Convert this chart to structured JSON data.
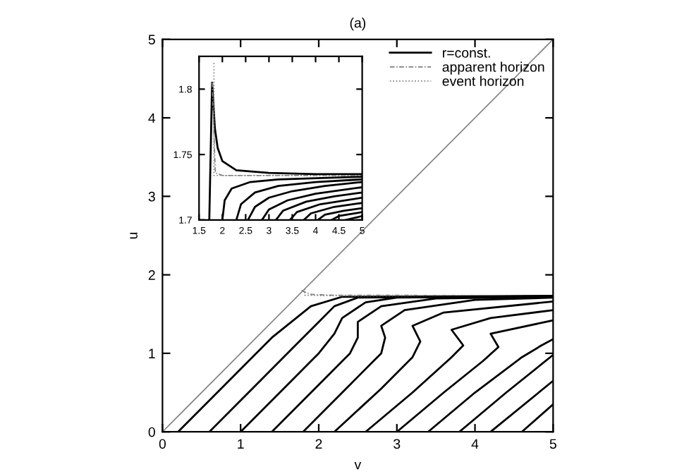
{
  "chart_data": [
    {
      "type": "line",
      "title": "(a)",
      "xlabel": "v",
      "ylabel": "u",
      "xlim": [
        0,
        5
      ],
      "ylim": [
        0,
        5
      ],
      "xticks": [
        0,
        1,
        2,
        3,
        4,
        5
      ],
      "yticks": [
        0,
        1,
        2,
        3,
        4,
        5
      ],
      "grid": false,
      "legend": "top right",
      "marker": "none",
      "series": [
        {
          "name": "r=const.",
          "color": "#000000",
          "line_style": "solid",
          "x": [
            0.2,
            0.8,
            1.4,
            1.9,
            2.3,
            5
          ],
          "values": [
            0,
            0.6,
            1.2,
            1.6,
            1.72,
            1.73
          ]
        },
        {
          "name": "apparent horizon",
          "color": "#808080",
          "line_style": "dashed",
          "x": [
            1.78,
            1.9,
            2.2,
            3,
            5
          ],
          "values": [
            1.8,
            1.75,
            1.74,
            1.74,
            1.73
          ]
        },
        {
          "name": "event horizon",
          "color": "#808080",
          "line_style": "dotted",
          "x": [
            1.82,
            1.82,
            2.5,
            5
          ],
          "values": [
            1.82,
            1.74,
            1.73,
            1.73
          ]
        },
        {
          "color": "#808080",
          "line_style": "solid",
          "x": [
            0,
            5
          ],
          "values": [
            0,
            5
          ]
        },
        {
          "color": "#000000",
          "line_style": "solid",
          "x": [
            0.6,
            1.2,
            1.7,
            2.0,
            2.2,
            2.5,
            5
          ],
          "values": [
            0,
            0.6,
            1.1,
            1.4,
            1.6,
            1.71,
            1.73
          ]
        },
        {
          "color": "#000000",
          "line_style": "solid",
          "x": [
            1.0,
            1.6,
            2.0,
            2.2,
            2.3,
            2.6,
            3,
            5
          ],
          "values": [
            0,
            0.6,
            1.0,
            1.25,
            1.45,
            1.65,
            1.71,
            1.73
          ]
        },
        {
          "color": "#000000",
          "line_style": "solid",
          "x": [
            1.4,
            2.0,
            2.4,
            2.5,
            2.5,
            2.8,
            3.5,
            5
          ],
          "values": [
            0,
            0.6,
            1.0,
            1.2,
            1.4,
            1.6,
            1.7,
            1.72
          ]
        },
        {
          "color": "#000000",
          "line_style": "solid",
          "x": [
            1.8,
            2.4,
            2.8,
            2.85,
            2.8,
            3.1,
            4,
            5
          ],
          "values": [
            0,
            0.6,
            1.0,
            1.2,
            1.35,
            1.55,
            1.68,
            1.71
          ]
        },
        {
          "color": "#000000",
          "line_style": "solid",
          "x": [
            2.2,
            2.8,
            3.2,
            3.3,
            3.2,
            3.6,
            5
          ],
          "values": [
            0,
            0.55,
            0.95,
            1.15,
            1.35,
            1.52,
            1.66
          ]
        },
        {
          "color": "#000000",
          "line_style": "solid",
          "x": [
            2.6,
            3.2,
            3.7,
            3.85,
            3.7,
            4.2,
            5
          ],
          "values": [
            0,
            0.5,
            0.95,
            1.1,
            1.3,
            1.45,
            1.55
          ]
        },
        {
          "color": "#000000",
          "line_style": "solid",
          "x": [
            3.0,
            3.6,
            4.1,
            4.3,
            4.2,
            5
          ],
          "values": [
            0,
            0.5,
            0.9,
            1.08,
            1.25,
            1.42
          ]
        },
        {
          "color": "#000000",
          "line_style": "solid",
          "x": [
            3.4,
            4.0,
            4.6,
            4.85,
            5
          ],
          "values": [
            0,
            0.5,
            0.95,
            1.1,
            1.18
          ]
        },
        {
          "color": "#000000",
          "line_style": "solid",
          "x": [
            3.8,
            4.4,
            5
          ],
          "values": [
            0,
            0.5,
            0.98
          ]
        },
        {
          "color": "#000000",
          "line_style": "solid",
          "x": [
            4.2,
            5
          ],
          "values": [
            0,
            0.65
          ]
        },
        {
          "color": "#000000",
          "line_style": "solid",
          "x": [
            4.6,
            5
          ],
          "values": [
            0,
            0.35
          ]
        }
      ]
    },
    {
      "type": "line",
      "xlim": [
        1.5,
        5
      ],
      "ylim": [
        1.7,
        1.825
      ],
      "xticks": [
        1.5,
        2,
        2.5,
        3,
        3.5,
        4,
        4.5,
        5
      ],
      "yticks": [
        1.7,
        1.75,
        1.8
      ],
      "grid": false,
      "legend": false,
      "marker": "none",
      "series": [
        {
          "color": "#000000",
          "line_style": "solid",
          "x": [
            1.72,
            1.78,
            1.84,
            1.9,
            2.0,
            2.3,
            3,
            4,
            5
          ],
          "values": [
            1.7,
            1.805,
            1.77,
            1.755,
            1.745,
            1.738,
            1.736,
            1.735,
            1.735
          ]
        },
        {
          "color": "#808080",
          "line_style": "dashed",
          "x": [
            1.78,
            1.85,
            2.0,
            5
          ],
          "values": [
            1.805,
            1.736,
            1.734,
            1.734
          ]
        },
        {
          "color": "#808080",
          "line_style": "dotted",
          "x": [
            1.82,
            1.82,
            2.5,
            5
          ],
          "values": [
            1.82,
            1.734,
            1.734,
            1.734
          ]
        },
        {
          "color": "#000000",
          "line_style": "solid",
          "x": [
            2.0,
            2.05,
            2.2,
            2.6,
            3.2,
            5
          ],
          "values": [
            1.7,
            1.715,
            1.724,
            1.729,
            1.731,
            1.733
          ]
        },
        {
          "color": "#000000",
          "line_style": "solid",
          "x": [
            2.3,
            2.4,
            2.7,
            3.2,
            4,
            5
          ],
          "values": [
            1.7,
            1.712,
            1.721,
            1.726,
            1.729,
            1.731
          ]
        },
        {
          "color": "#000000",
          "line_style": "solid",
          "x": [
            2.55,
            2.7,
            3.0,
            3.5,
            4.2,
            5
          ],
          "values": [
            1.7,
            1.71,
            1.717,
            1.722,
            1.726,
            1.729
          ]
        },
        {
          "color": "#000000",
          "line_style": "solid",
          "x": [
            2.85,
            3.0,
            3.4,
            4.0,
            5
          ],
          "values": [
            1.7,
            1.708,
            1.715,
            1.72,
            1.725
          ]
        },
        {
          "color": "#000000",
          "line_style": "solid",
          "x": [
            3.15,
            3.3,
            3.8,
            4.4,
            5
          ],
          "values": [
            1.7,
            1.707,
            1.714,
            1.718,
            1.721
          ]
        },
        {
          "color": "#000000",
          "line_style": "solid",
          "x": [
            3.45,
            3.6,
            4.1,
            5
          ],
          "values": [
            1.7,
            1.706,
            1.712,
            1.717
          ]
        },
        {
          "color": "#000000",
          "line_style": "solid",
          "x": [
            3.75,
            3.9,
            4.4,
            5
          ],
          "values": [
            1.7,
            1.705,
            1.71,
            1.713
          ]
        },
        {
          "color": "#000000",
          "line_style": "solid",
          "x": [
            4.05,
            4.2,
            4.6,
            5
          ],
          "values": [
            1.7,
            1.704,
            1.707,
            1.709
          ]
        },
        {
          "color": "#000000",
          "line_style": "solid",
          "x": [
            4.35,
            4.5,
            5
          ],
          "values": [
            1.7,
            1.703,
            1.706
          ]
        },
        {
          "color": "#000000",
          "line_style": "solid",
          "x": [
            4.65,
            5
          ],
          "values": [
            1.7,
            1.703
          ]
        }
      ]
    }
  ]
}
